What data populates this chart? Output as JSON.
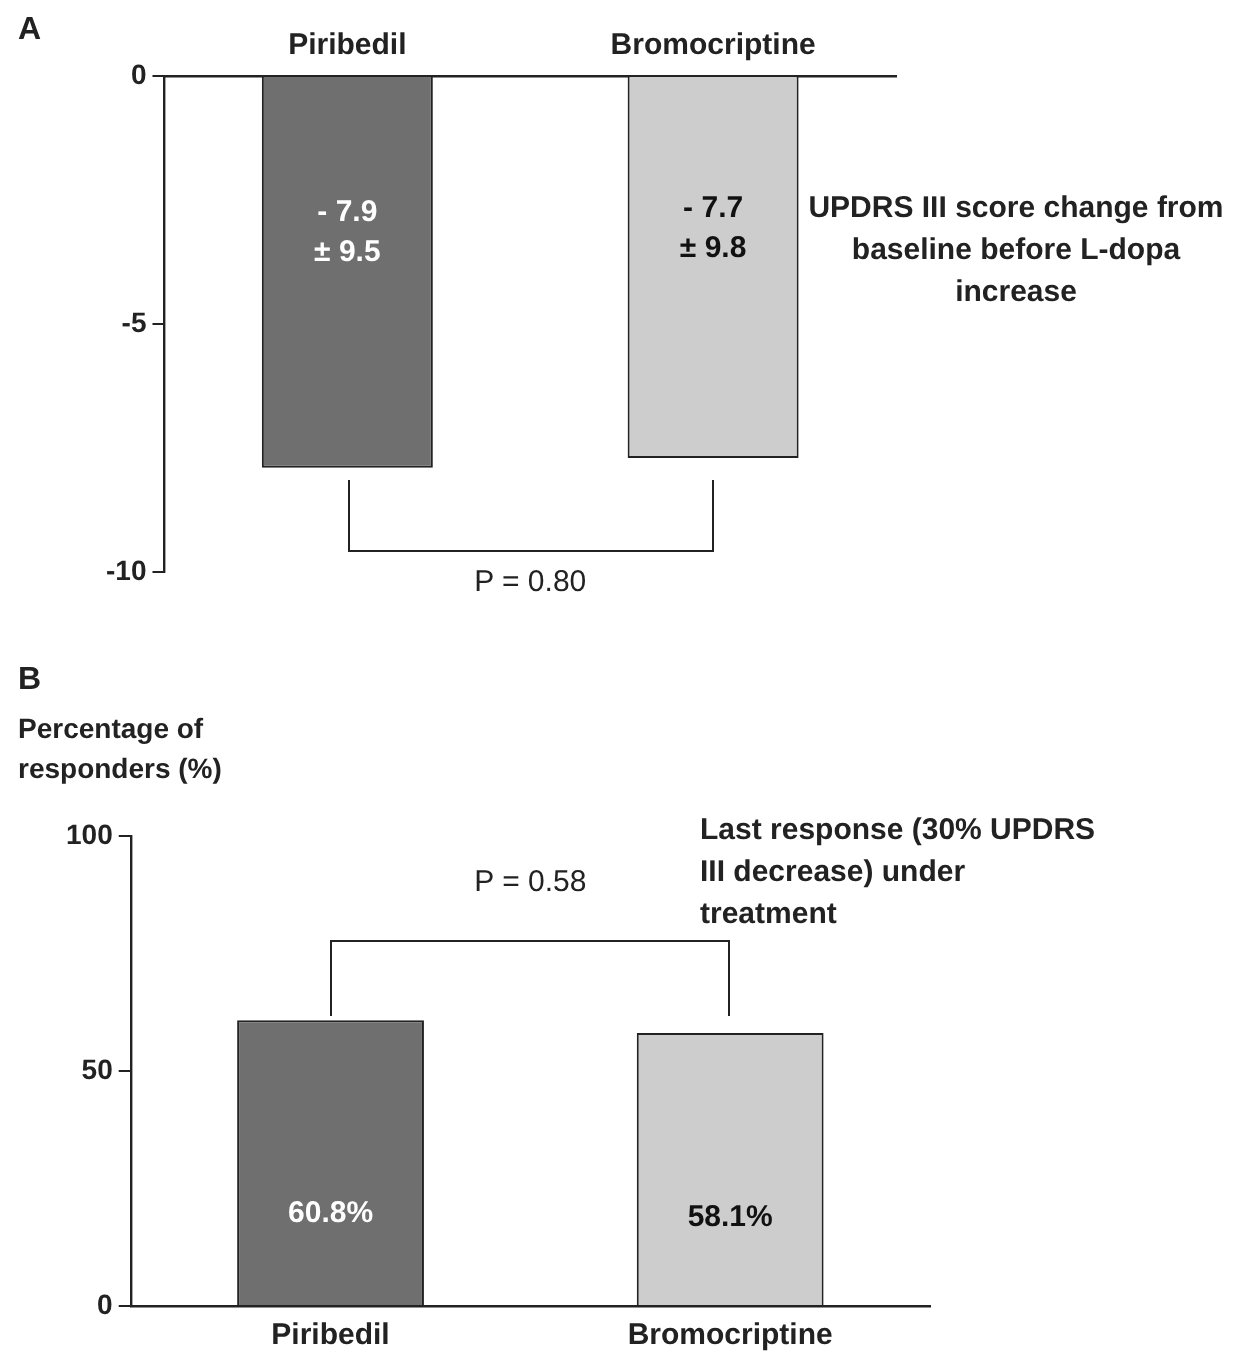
{
  "chart_data": [
    {
      "type": "bar",
      "title": "UPDRS III score change from baseline before L-dopa increase",
      "categories": [
        "Piribedil",
        "Bromocriptine"
      ],
      "values": [
        -7.9,
        -7.7
      ],
      "colors": [
        "#6f6f6f",
        "#cdcdcd"
      ],
      "value_labels": [
        "- 7.9\n± 9.5",
        "- 7.7\n± 9.8"
      ],
      "ylim": [
        -10,
        0
      ],
      "yticks": [
        -10,
        -5,
        0
      ],
      "annotations": [
        "A",
        "P = 0.80"
      ]
    },
    {
      "type": "bar",
      "title": "Last response (30% UPDRS III decrease) under treatment",
      "ylabel": "Percentage of responders (%)",
      "categories": [
        "Piribedil",
        "Bromocriptine"
      ],
      "values": [
        60.8,
        58.1
      ],
      "colors": [
        "#6f6f6f",
        "#cdcdcd"
      ],
      "value_labels": [
        "60.8%",
        "58.1%"
      ],
      "ylim": [
        0,
        100
      ],
      "yticks": [
        0,
        50,
        100
      ],
      "annotations": [
        "B",
        "P = 0.58"
      ]
    }
  ]
}
